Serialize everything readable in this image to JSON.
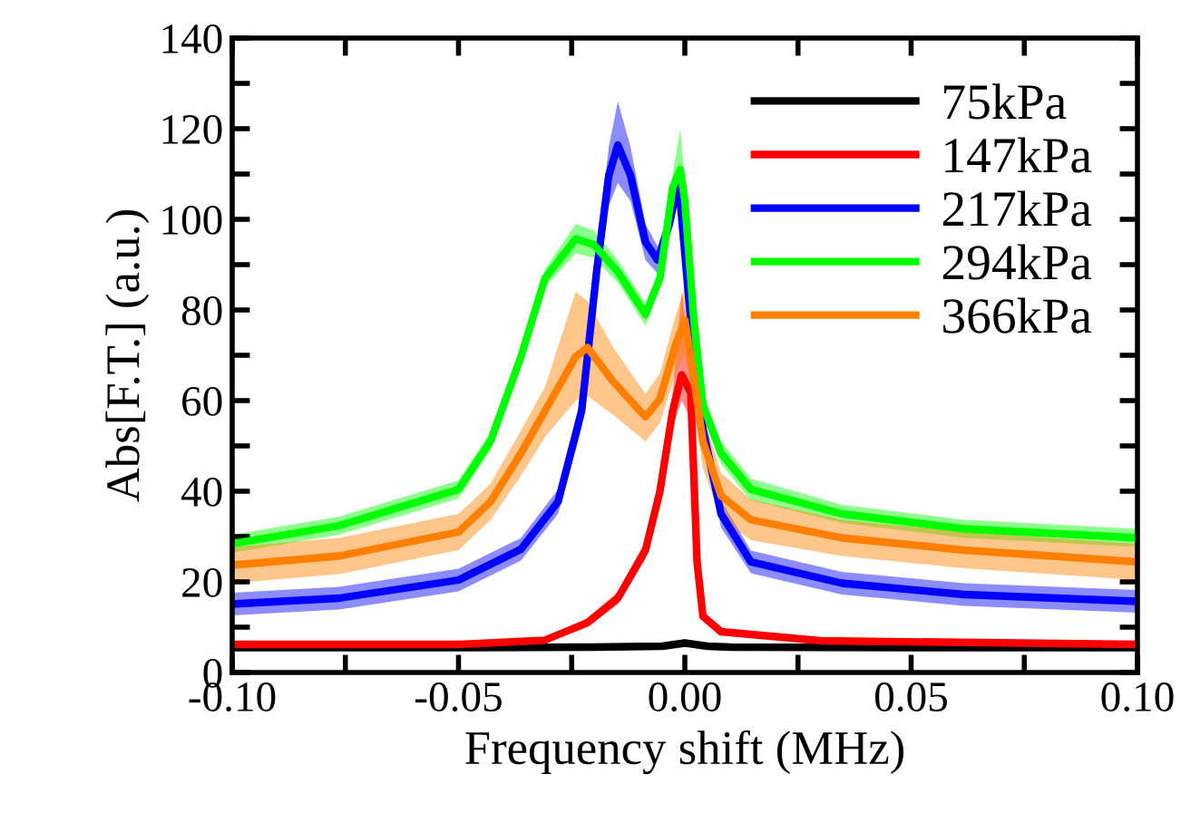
{
  "chart_data": {
    "type": "line",
    "xlabel": "Frequency shift (MHz)",
    "ylabel": "Abs[F.T.] (a.u.)",
    "xlim": [
      -0.1,
      0.1
    ],
    "ylim": [
      0,
      140
    ],
    "xticks": [
      {
        "value": -0.1,
        "label": "-0.10"
      },
      {
        "value": -0.075,
        "label": null
      },
      {
        "value": -0.05,
        "label": "-0.05"
      },
      {
        "value": -0.025,
        "label": null
      },
      {
        "value": 0,
        "label": "0.00"
      },
      {
        "value": 0.025,
        "label": null
      },
      {
        "value": 0.05,
        "label": "0.05"
      },
      {
        "value": 0.075,
        "label": null
      },
      {
        "value": 0.1,
        "label": "0.10"
      }
    ],
    "yticks": [
      0,
      {
        "value": 10,
        "label": null
      },
      20,
      {
        "value": 30,
        "label": null
      },
      40,
      {
        "value": 50,
        "label": null
      },
      60,
      {
        "value": 70,
        "label": null
      },
      80,
      {
        "value": 90,
        "label": null
      },
      100,
      {
        "value": 110,
        "label": null
      },
      120,
      {
        "value": 130,
        "label": null
      },
      140
    ],
    "grid": false,
    "legend": "top right",
    "line_style": "solid",
    "marker": "none",
    "series": [
      {
        "name": "75kPa",
        "color": "#000000",
        "x": [
          -0.1,
          -0.05,
          -0.02,
          -0.005,
          0,
          0.005,
          0.01,
          0.05,
          0.1
        ],
        "values": [
          5.5,
          5.5,
          5.6,
          5.8,
          6.5,
          5.8,
          5.6,
          5.5,
          5.5
        ]
      },
      {
        "name": "147kPa",
        "color": "#ff0000",
        "x": [
          -0.1,
          -0.05,
          -0.031,
          -0.0215,
          -0.0148,
          -0.0087,
          -0.0055,
          -0.0027,
          -0.0007,
          0.0013,
          0.0027,
          0.004,
          0.008,
          0.03,
          0.1
        ],
        "values": [
          6.2,
          6.2,
          7.1,
          11,
          16.4,
          27,
          40,
          57.7,
          65.7,
          61.7,
          24.4,
          12.4,
          9,
          7,
          6.2
        ],
        "lower": [
          5.8,
          5.8,
          6.5,
          10,
          15,
          25,
          37,
          54,
          60,
          56,
          22,
          11.4,
          8.4,
          6.6,
          5.8
        ],
        "upper": [
          6.6,
          6.6,
          7.7,
          12,
          17.8,
          29,
          43,
          62,
          84,
          70,
          27,
          13.4,
          9.6,
          7.4,
          6.6
        ]
      },
      {
        "name": "217kPa",
        "color": "#0000ff",
        "x": [
          -0.1,
          -0.0764,
          -0.05,
          -0.0362,
          -0.028,
          -0.0228,
          -0.0195,
          -0.0168,
          -0.0148,
          -0.012,
          -0.0087,
          -0.006,
          -0.0034,
          -0.0014,
          0.0013,
          0.004,
          0.008,
          0.0146,
          0.0347,
          0.0617,
          0.1
        ],
        "values": [
          15.1,
          16.4,
          20.4,
          27.2,
          37.7,
          57.7,
          88.4,
          109.7,
          116.4,
          109.7,
          95,
          91,
          99,
          108.4,
          77.7,
          53.7,
          35,
          24.4,
          19.7,
          17.2,
          15.7
        ],
        "lower": [
          12.6,
          13.9,
          17.9,
          24.7,
          35,
          54,
          84,
          103,
          108,
          104,
          91,
          88,
          96,
          106,
          74,
          50,
          32,
          21.9,
          17.2,
          14.7,
          13.2
        ],
        "upper": [
          17.6,
          18.9,
          22.9,
          29.7,
          40.4,
          61,
          93,
          116,
          126,
          116,
          99,
          94,
          102,
          111,
          81,
          57,
          38,
          26.9,
          22.2,
          19.7,
          18.2
        ]
      },
      {
        "name": "294kPa",
        "color": "#00ff00",
        "x": [
          -0.1,
          -0.0764,
          -0.05,
          -0.0429,
          -0.0362,
          -0.0309,
          -0.0241,
          -0.0201,
          -0.0148,
          -0.0087,
          -0.0055,
          -0.0027,
          -0.001,
          0,
          0.002,
          0.004,
          0.008,
          0.0146,
          0.0347,
          0.0617,
          0.1
        ],
        "values": [
          28.4,
          32.4,
          40.4,
          51.1,
          69.7,
          87,
          95.7,
          94.4,
          88.4,
          79,
          87,
          107,
          111,
          104,
          77.7,
          59,
          48.4,
          40.4,
          35,
          31.7,
          29.7
        ],
        "lower": [
          26.4,
          30.4,
          38.4,
          49.1,
          67.7,
          85,
          92.5,
          91.5,
          86,
          76.5,
          85,
          104,
          107,
          100,
          75,
          56.5,
          46,
          38,
          33,
          29.7,
          27.7
        ],
        "upper": [
          30.4,
          34.4,
          42.4,
          53.1,
          71.7,
          89,
          99,
          97.5,
          91,
          81.5,
          89,
          110,
          120,
          108,
          80,
          61.5,
          51,
          42.8,
          37,
          33.7,
          31.7
        ]
      },
      {
        "name": "366kPa",
        "color": "#ff8000",
        "x": [
          -0.1,
          -0.0764,
          -0.05,
          -0.0429,
          -0.0362,
          -0.0309,
          -0.0241,
          -0.0215,
          -0.016,
          -0.0087,
          -0.0055,
          -0.002,
          0,
          0.0013,
          0.004,
          0.008,
          0.0146,
          0.0347,
          0.0617,
          0.1
        ],
        "values": [
          23.7,
          25.7,
          31,
          37.7,
          48.4,
          57.7,
          69.7,
          71.7,
          64.4,
          56.4,
          60.4,
          72.4,
          77.7,
          69.7,
          51,
          39,
          33.7,
          29.7,
          27,
          24.4
        ],
        "lower": [
          19.7,
          21.7,
          27,
          33.7,
          43.4,
          52,
          60,
          61,
          57,
          51,
          55,
          66,
          70,
          63,
          45,
          34,
          29.2,
          25.7,
          23,
          20.4
        ],
        "upper": [
          27.7,
          29.7,
          35,
          41.7,
          53.4,
          63,
          84,
          82,
          72,
          61.5,
          66,
          79,
          85,
          76,
          57,
          44,
          38.2,
          33.7,
          31,
          28.4
        ]
      }
    ]
  }
}
